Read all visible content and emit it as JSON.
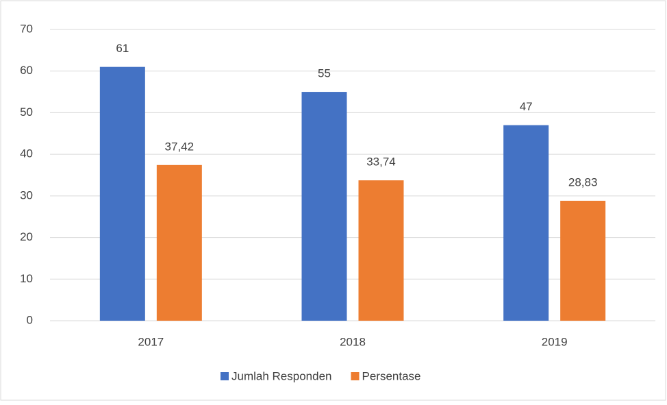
{
  "chart_data": {
    "type": "bar",
    "categories": [
      "2017",
      "2018",
      "2019"
    ],
    "series": [
      {
        "name": "Jumlah Responden",
        "color": "#4472c4",
        "values": [
          61,
          55,
          47
        ]
      },
      {
        "name": "Persentase",
        "color": "#ed7d31",
        "values": [
          37.42,
          33.74,
          28.83
        ],
        "value_labels": [
          "37,42",
          "33,74",
          "28,83"
        ]
      }
    ],
    "ylim": [
      0,
      70
    ],
    "yticks": [
      0,
      10,
      20,
      30,
      40,
      50,
      60,
      70
    ],
    "grid": true,
    "legend": "bottom"
  }
}
